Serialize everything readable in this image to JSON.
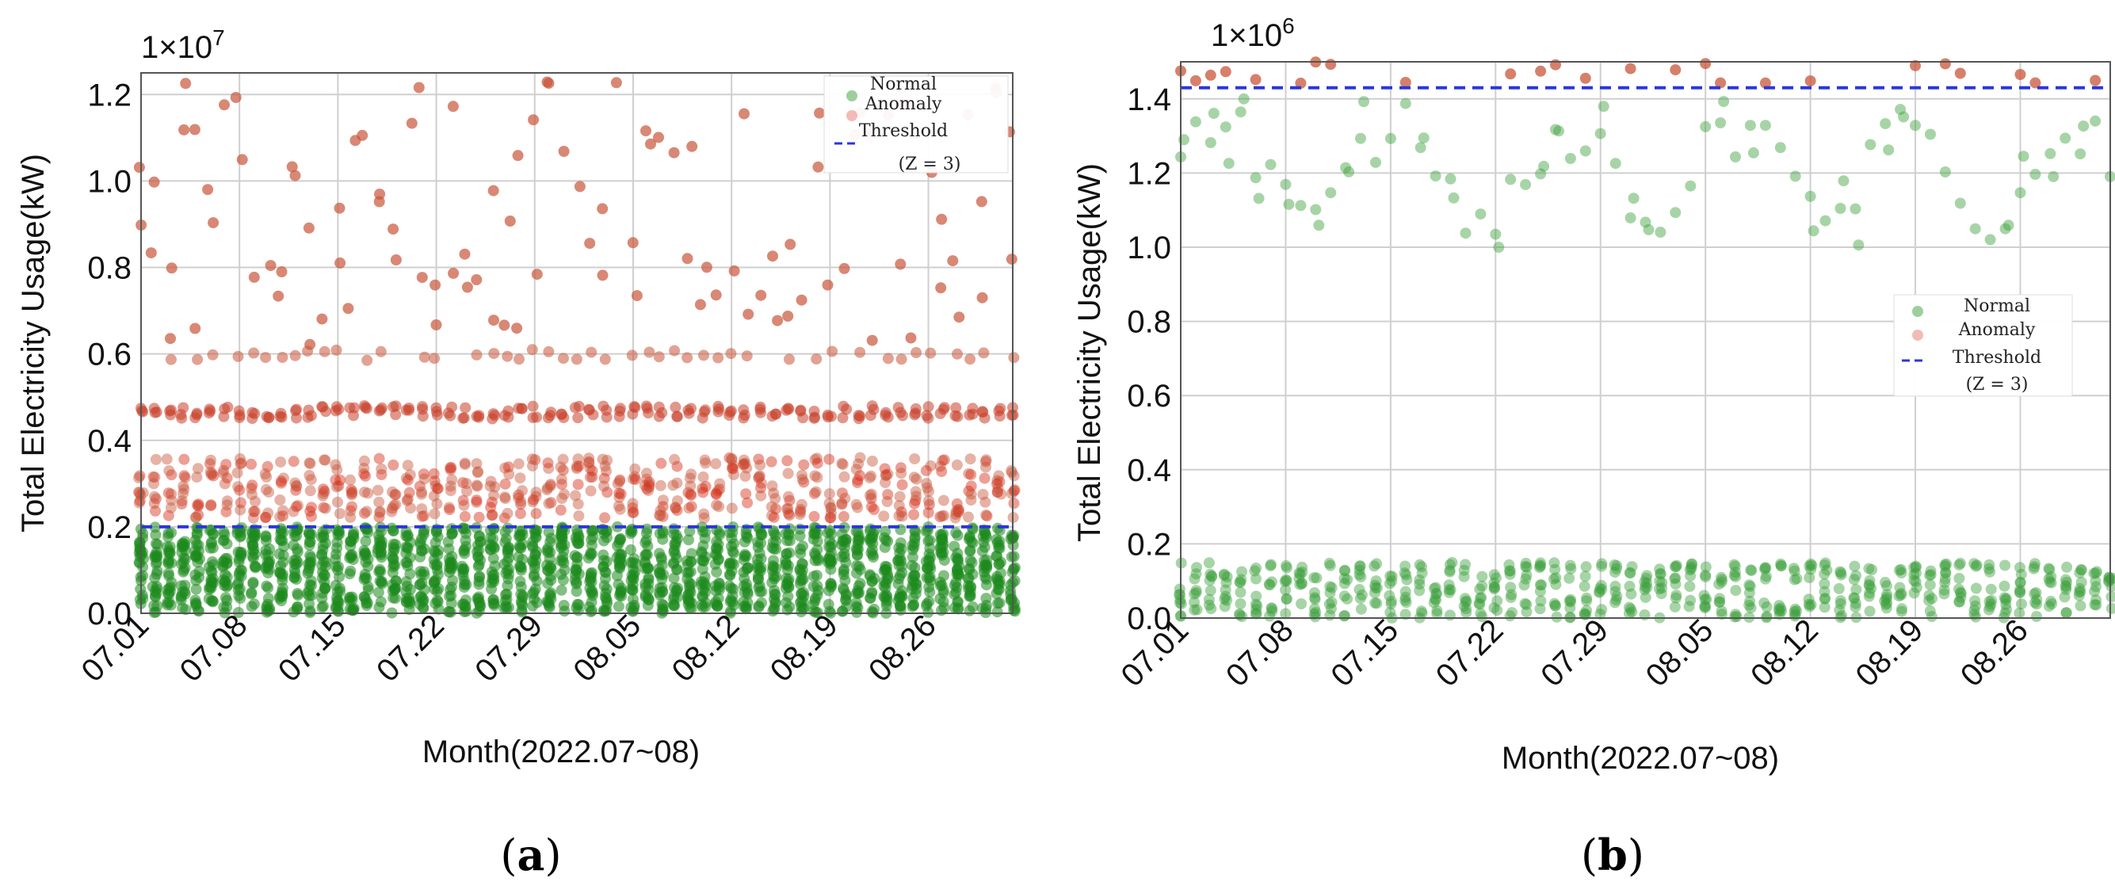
{
  "chart_data": [
    {
      "type": "scatter",
      "panel": "a",
      "caption_open": "(",
      "caption_letter": "a",
      "caption_close": ")",
      "xlabel": "Month(2022.07~08)",
      "ylabel": "Total Electricity Usage(kW)",
      "y_multiplier": "1×10",
      "y_exponent": "7",
      "ylim": [
        0.0,
        1.25
      ],
      "yticks": [
        0.0,
        0.2,
        0.4,
        0.6,
        0.8,
        1.0,
        1.2
      ],
      "ytick_labels": [
        "0.0",
        "0.2",
        "0.4",
        "0.6",
        "0.8",
        "1.0",
        "1.2"
      ],
      "xlim": [
        0,
        62
      ],
      "xticks": [
        0,
        7,
        14,
        21,
        28,
        35,
        42,
        49,
        56
      ],
      "xtick_labels": [
        "07.01",
        "07.08",
        "07.15",
        "07.22",
        "07.29",
        "08.05",
        "08.12",
        "08.19",
        "08.26"
      ],
      "threshold": 0.2,
      "threshold_line": "dashed",
      "grid": true,
      "legend": {
        "position": "top-right",
        "entries": [
          "Normal",
          "Anomaly",
          "Threshold"
        ],
        "note": "(Z = 3)"
      },
      "series": [
        {
          "name": "Normal",
          "color": "#1e8a1e",
          "description": "dense band of daily readings from 0.0 to 0.2",
          "range": [
            0.0,
            0.2
          ]
        },
        {
          "name": "Anomaly",
          "color": "#c8553a",
          "description": "readings above threshold, dense bands near 0.22-0.35, 0.45-0.48 and 0.59-0.61, scattered up to 1.25",
          "bands": [
            [
              0.22,
              0.36
            ],
            [
              0.45,
              0.48
            ],
            [
              0.585,
              0.61
            ]
          ],
          "range": [
            0.2,
            1.25
          ]
        }
      ]
    },
    {
      "type": "scatter",
      "panel": "b",
      "caption_open": "(",
      "caption_letter": "b",
      "caption_close": ")",
      "xlabel": "Month(2022.07~08)",
      "ylabel": "Total Electricity Usage(kW)",
      "y_multiplier": "1×10",
      "y_exponent": "6",
      "ylim": [
        0.0,
        1.5
      ],
      "yticks": [
        0.0,
        0.2,
        0.4,
        0.6,
        0.8,
        1.0,
        1.2,
        1.4
      ],
      "ytick_labels": [
        "0.0",
        "0.2",
        "0.4",
        "0.6",
        "0.8",
        "1.0",
        "1.2",
        "1.4"
      ],
      "xlim": [
        0,
        62
      ],
      "xticks": [
        0,
        7,
        14,
        21,
        28,
        35,
        42,
        49,
        56
      ],
      "xtick_labels": [
        "07.01",
        "07.08",
        "07.15",
        "07.22",
        "07.29",
        "08.05",
        "08.12",
        "08.19",
        "08.26"
      ],
      "threshold": 1.43,
      "threshold_line": "dashed",
      "grid": true,
      "legend": {
        "position": "center-right",
        "entries": [
          "Normal",
          "Anomaly",
          "Threshold"
        ],
        "note": "(Z = 3)"
      },
      "series": [
        {
          "name": "Normal",
          "color": "#3ca03c",
          "description": "low band from 0.0 to 0.15 and a wavy upper band between 1.0 and 1.4",
          "bands": [
            [
              0.0,
              0.15
            ],
            [
              1.0,
              1.4
            ]
          ]
        },
        {
          "name": "Anomaly",
          "color": "#c8553a",
          "description": "points just above threshold around 1.44-1.5",
          "range": [
            1.44,
            1.5
          ]
        }
      ]
    }
  ]
}
